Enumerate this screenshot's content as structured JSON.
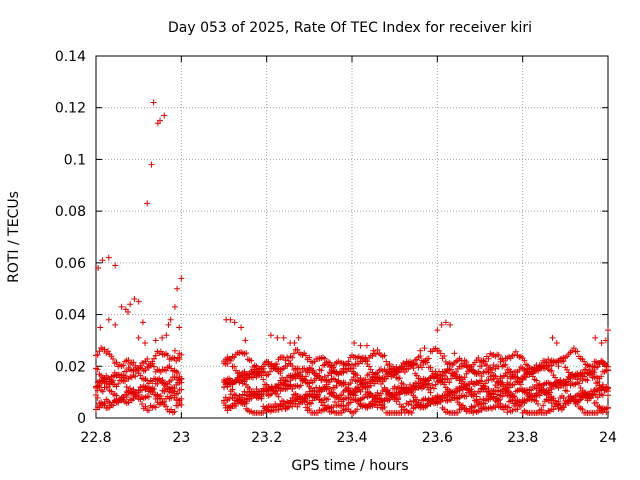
{
  "chart_data": {
    "type": "scatter",
    "title": "Day 053 of 2025, Rate Of TEC Index for receiver kiri",
    "xlabel": "GPS time / hours",
    "ylabel": "ROTI / TECUs",
    "xlim": [
      22.8,
      24
    ],
    "ylim": [
      0,
      0.14
    ],
    "xticks": [
      "22.8",
      "23",
      "23.2",
      "23.4",
      "23.6",
      "23.8",
      "24"
    ],
    "yticks": [
      "0",
      "0.02",
      "0.04",
      "0.06",
      "0.08",
      "0.1",
      "0.12",
      "0.14"
    ],
    "grid": true,
    "marker": "+",
    "color": "#e00000",
    "series": [
      {
        "name": "ROTI",
        "points": [
          [
            22.805,
            0.058
          ],
          [
            22.815,
            0.061
          ],
          [
            22.83,
            0.062
          ],
          [
            22.845,
            0.059
          ],
          [
            22.81,
            0.035
          ],
          [
            22.83,
            0.038
          ],
          [
            22.845,
            0.036
          ],
          [
            22.86,
            0.043
          ],
          [
            22.87,
            0.042
          ],
          [
            22.88,
            0.044
          ],
          [
            22.89,
            0.046
          ],
          [
            22.9,
            0.045
          ],
          [
            22.875,
            0.041
          ],
          [
            22.91,
            0.037
          ],
          [
            22.92,
            0.083
          ],
          [
            22.93,
            0.098
          ],
          [
            22.935,
            0.122
          ],
          [
            22.945,
            0.114
          ],
          [
            22.95,
            0.115
          ],
          [
            22.96,
            0.117
          ],
          [
            22.94,
            0.03
          ],
          [
            22.955,
            0.031
          ],
          [
            22.965,
            0.032
          ],
          [
            22.97,
            0.036
          ],
          [
            22.975,
            0.038
          ],
          [
            22.985,
            0.043
          ],
          [
            22.99,
            0.05
          ],
          [
            22.995,
            0.035
          ],
          [
            23.0,
            0.054
          ],
          [
            22.985,
            0.026
          ],
          [
            22.995,
            0.025
          ],
          [
            22.9,
            0.031
          ],
          [
            22.915,
            0.029
          ],
          [
            23.105,
            0.038
          ],
          [
            23.115,
            0.038
          ],
          [
            23.125,
            0.037
          ],
          [
            23.14,
            0.035
          ],
          [
            23.15,
            0.03
          ],
          [
            23.21,
            0.032
          ],
          [
            23.225,
            0.031
          ],
          [
            23.24,
            0.031
          ],
          [
            23.255,
            0.029
          ],
          [
            23.265,
            0.029
          ],
          [
            23.275,
            0.031
          ],
          [
            23.405,
            0.029
          ],
          [
            23.42,
            0.028
          ],
          [
            23.435,
            0.028
          ],
          [
            23.45,
            0.026
          ],
          [
            23.6,
            0.034
          ],
          [
            23.61,
            0.036
          ],
          [
            23.62,
            0.037
          ],
          [
            23.63,
            0.036
          ],
          [
            23.87,
            0.031
          ],
          [
            23.88,
            0.029
          ],
          [
            23.97,
            0.031
          ],
          [
            23.985,
            0.029
          ],
          [
            23.995,
            0.03
          ],
          [
            24.0,
            0.034
          ],
          [
            23.57,
            0.027
          ],
          [
            23.56,
            0.026
          ],
          [
            23.64,
            0.025
          ]
        ]
      }
    ],
    "bands": [
      {
        "from": 22.8,
        "to": 23.0,
        "values": [
          0.022,
          0.018,
          0.015,
          0.012,
          0.01,
          0.008,
          0.006
        ]
      },
      {
        "from": 23.1,
        "to": 24.0,
        "values": [
          0.022,
          0.019,
          0.017,
          0.014,
          0.012,
          0.01,
          0.008,
          0.006,
          0.004
        ]
      }
    ]
  }
}
